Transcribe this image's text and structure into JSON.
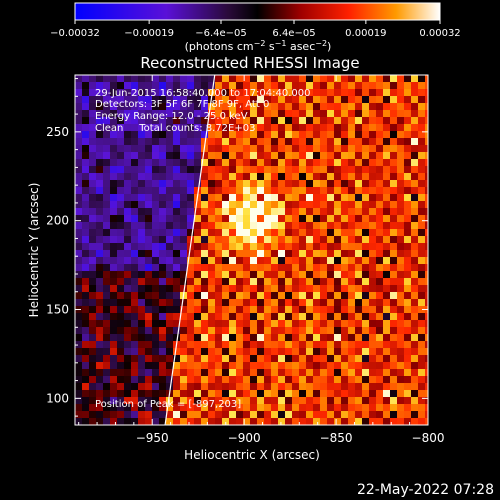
{
  "chart_data": {
    "type": "heatmap",
    "title": "Reconstructed RHESSI Image",
    "xlabel": "Heliocentric X (arcsec)",
    "ylabel": "Heliocentric Y (arcsec)",
    "xlim": [
      -992,
      -800
    ],
    "ylim": [
      85,
      282
    ],
    "x_ticks": [
      -950,
      -900,
      -850,
      -800
    ],
    "x_tick_labels": [
      "−950",
      "−900",
      "−850",
      "−800"
    ],
    "y_ticks": [
      100,
      150,
      200,
      250
    ],
    "y_tick_labels": [
      "100",
      "150",
      "200",
      "250"
    ],
    "colorbar": {
      "range": [
        -0.00032,
        0.00032
      ],
      "ticks": [
        -0.00032,
        -0.00019,
        -6.4e-05,
        6.4e-05,
        0.00019,
        0.00032
      ],
      "tick_labels": [
        "−0.00032",
        "−0.00019",
        "−6.4e−05",
        "6.4e−05",
        "0.00019",
        "0.00032"
      ],
      "unit_main": "(photons cm",
      "unit_exp1": "−2",
      "unit_mid1": " s",
      "unit_exp2": "−1",
      "unit_mid2": " asec",
      "unit_exp3": "−2",
      "unit_end": ")"
    },
    "annotations": [
      "29-Jun-2015 16:58:40.000 to 17:04:40.000",
      "Detectors: 3F 5F 6F 7F 8F 9F, Att 0",
      "Energy Range: 12.0 - 25.0 keV",
      "Clean     Total counts: 8.72E+03"
    ],
    "peak_label": "Position of Peak = [-897,203]",
    "peak_position": [
      -897,
      203
    ],
    "limb_line": [
      [
        -943,
        85
      ],
      [
        -916,
        282
      ]
    ]
  },
  "footer_timestamp": "22-May-2022 07:28",
  "colors": {
    "background": "#000000",
    "text": "#ffffff"
  }
}
